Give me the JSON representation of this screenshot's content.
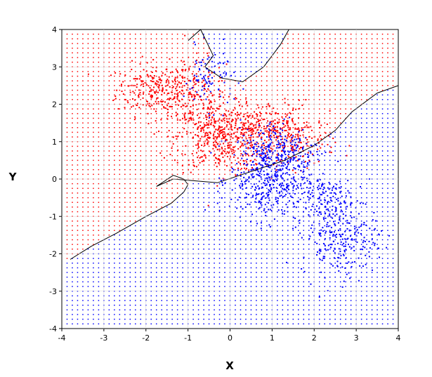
{
  "chart_data": {
    "type": "scatter",
    "title": "",
    "xlabel": "X",
    "ylabel": "Y",
    "xlim": [
      -4,
      4
    ],
    "ylim": [
      -4,
      4
    ],
    "x_ticks": [
      "-4",
      "-3",
      "-2",
      "-1",
      "0",
      "1",
      "2",
      "3",
      "4"
    ],
    "y_ticks": [
      "-4",
      "-3",
      "-2",
      "-1",
      "0",
      "1",
      "2",
      "3",
      "4"
    ],
    "grid": true,
    "legend": "none",
    "series": [
      {
        "color": "#ff0000",
        "clusters": [
          {
            "center": [
              -1.8,
              2.4
            ],
            "spread": [
              0.45,
              0.35
            ],
            "count": 220
          },
          {
            "center": [
              -0.9,
              2.2
            ],
            "spread": [
              0.4,
              0.5
            ],
            "count": 180
          },
          {
            "center": [
              -0.2,
              1.1
            ],
            "spread": [
              0.55,
              0.45
            ],
            "count": 420
          },
          {
            "center": [
              0.8,
              1.4
            ],
            "spread": [
              0.6,
              0.35
            ],
            "count": 220
          },
          {
            "center": [
              1.6,
              1.0
            ],
            "spread": [
              0.45,
              0.35
            ],
            "count": 140
          }
        ]
      },
      {
        "color": "#0000ff",
        "clusters": [
          {
            "center": [
              -0.5,
              2.7
            ],
            "spread": [
              0.3,
              0.4
            ],
            "count": 90
          },
          {
            "center": [
              0.9,
              0.0
            ],
            "spread": [
              0.45,
              0.55
            ],
            "count": 400
          },
          {
            "center": [
              1.2,
              0.8
            ],
            "spread": [
              0.5,
              0.4
            ],
            "count": 200
          },
          {
            "center": [
              2.6,
              -1.5
            ],
            "spread": [
              0.45,
              0.55
            ],
            "count": 260
          },
          {
            "center": [
              2.1,
              -0.5
            ],
            "spread": [
              0.4,
              0.4
            ],
            "count": 120
          }
        ]
      }
    ],
    "background_grid": {
      "step": 0.125,
      "region_colors": {
        "class_a": "#ff0000",
        "class_b": "#0000ff"
      }
    },
    "decision_boundary": [
      [
        -3.8,
        -2.15
      ],
      [
        -3.3,
        -1.8
      ],
      [
        -2.7,
        -1.45
      ],
      [
        -2.0,
        -1.0
      ],
      [
        -1.4,
        -0.65
      ],
      [
        -1.1,
        -0.35
      ],
      [
        -1.0,
        -0.15
      ],
      [
        -1.1,
        0.0
      ],
      [
        -1.35,
        0.1
      ],
      [
        -1.75,
        -0.2
      ],
      [
        -1.35,
        0.0
      ],
      [
        -0.8,
        -0.05
      ],
      [
        -0.3,
        -0.1
      ],
      [
        0.5,
        0.2
      ],
      [
        1.3,
        0.5
      ],
      [
        2.0,
        0.9
      ],
      [
        2.5,
        1.3
      ],
      [
        2.9,
        1.8
      ],
      [
        3.5,
        2.3
      ],
      [
        4.0,
        2.5
      ]
    ],
    "upper_boundary": [
      [
        -1.0,
        3.7
      ],
      [
        -0.7,
        4.0
      ],
      [
        -0.4,
        3.3
      ],
      [
        -0.6,
        3.0
      ],
      [
        -0.2,
        2.7
      ],
      [
        0.3,
        2.6
      ],
      [
        0.8,
        3.0
      ],
      [
        1.2,
        3.6
      ],
      [
        1.4,
        4.0
      ]
    ]
  }
}
